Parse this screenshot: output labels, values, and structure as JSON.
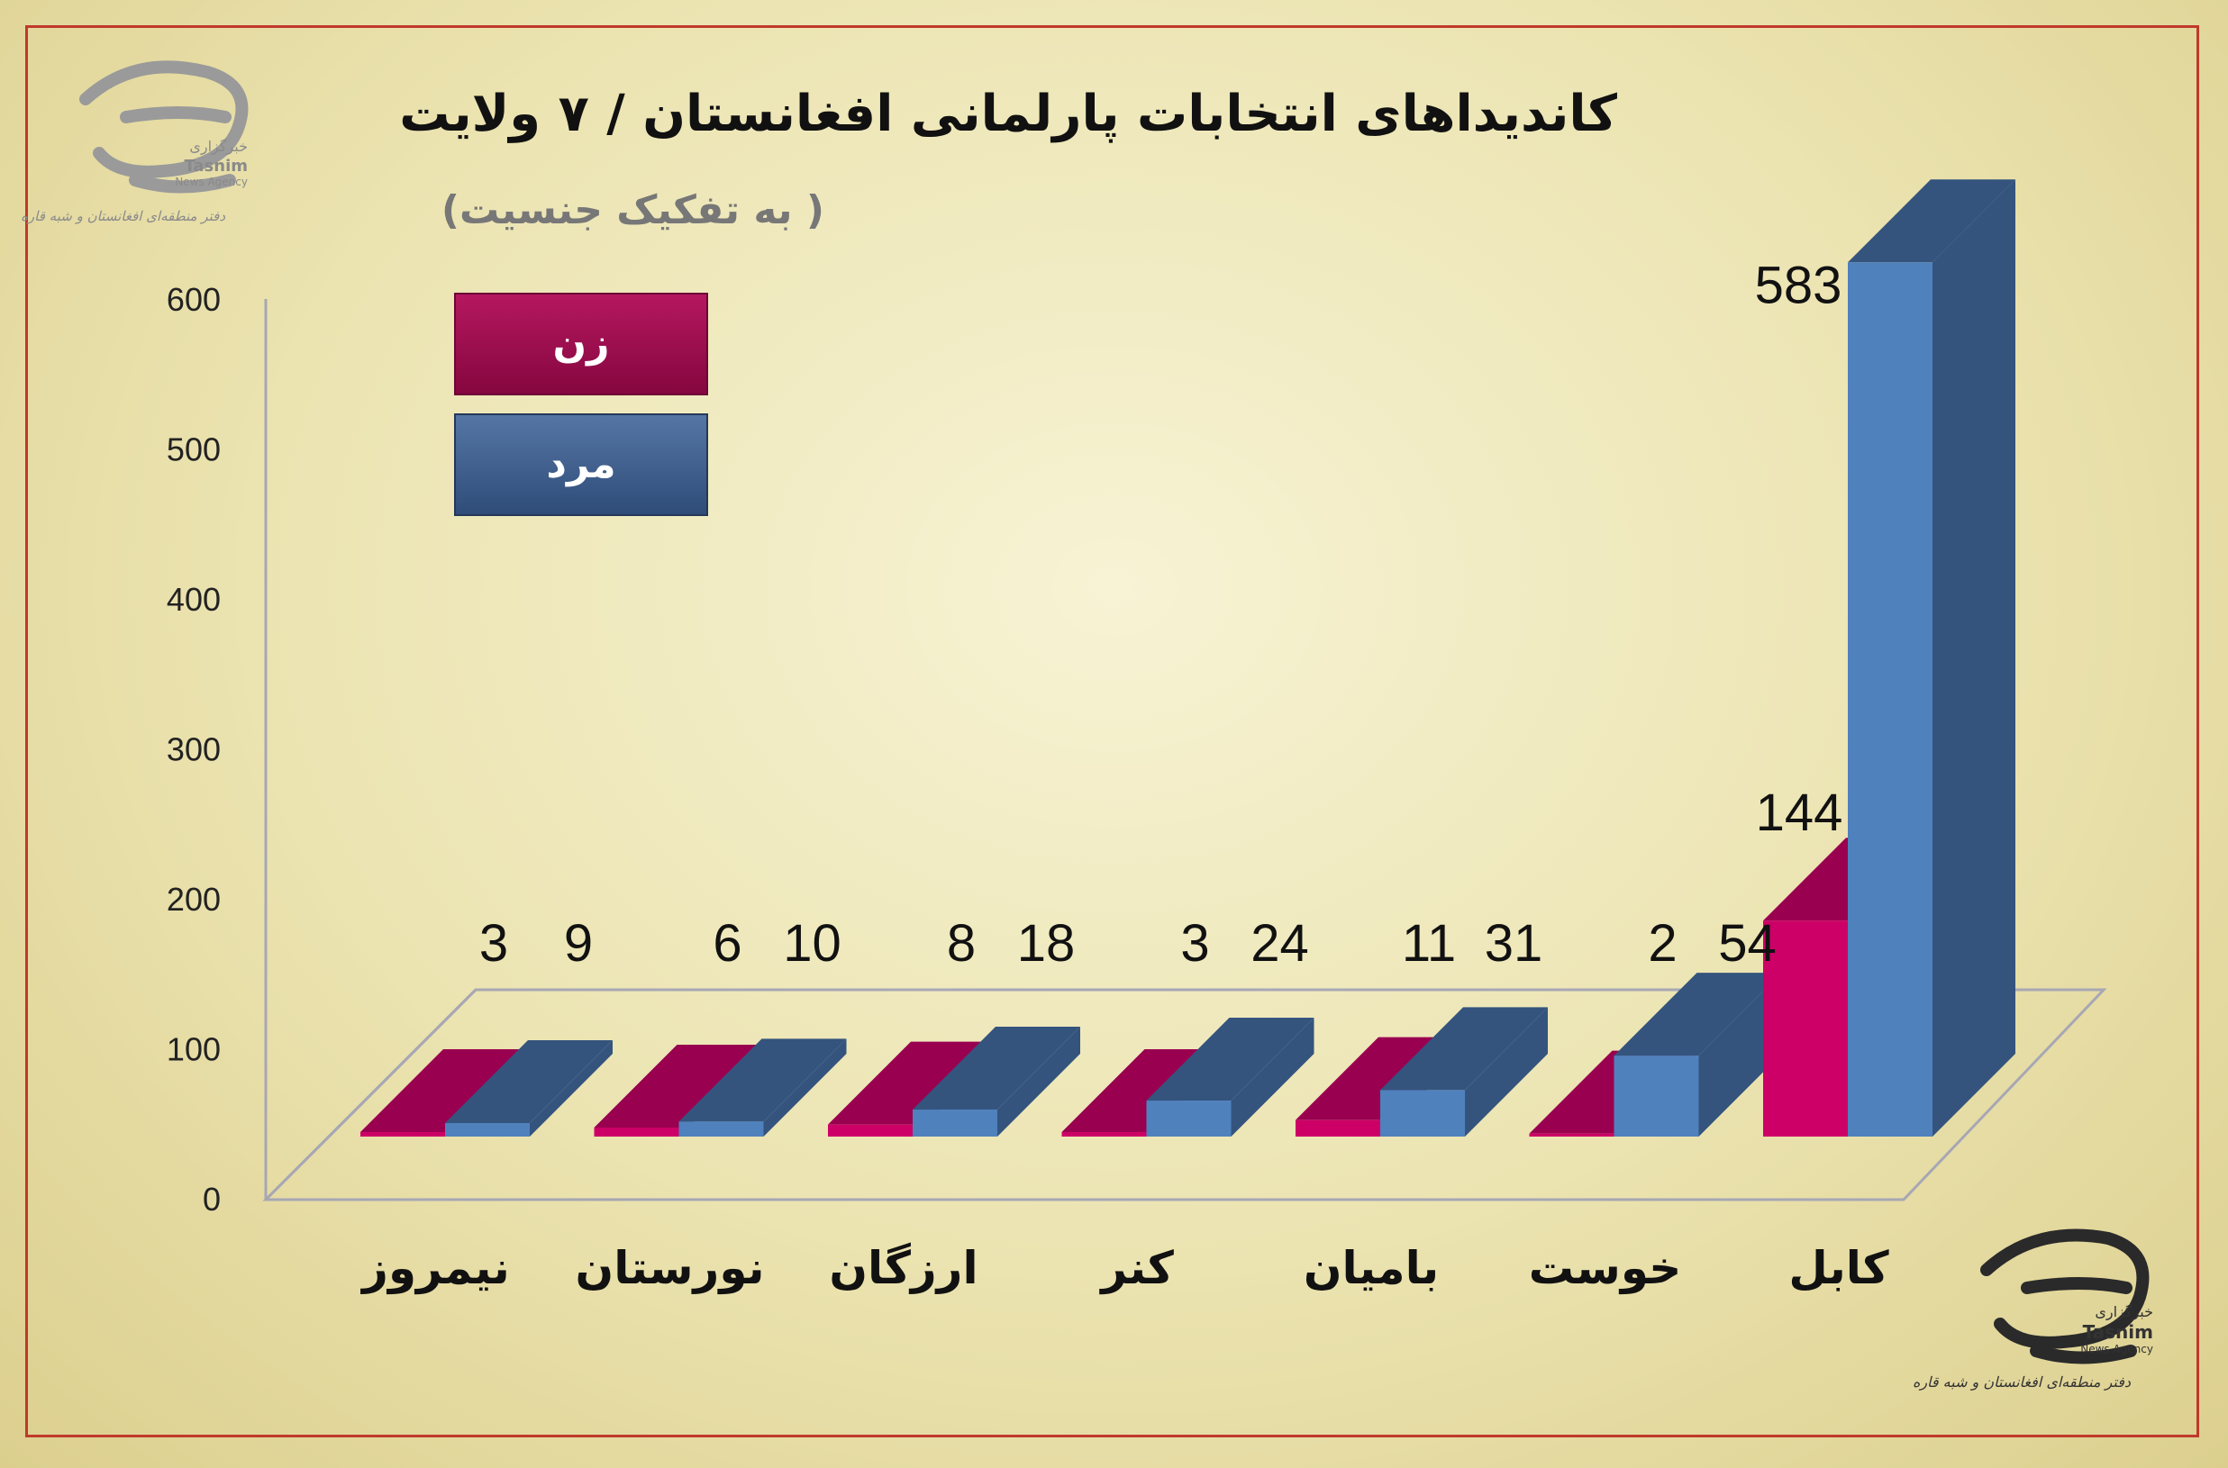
{
  "header": {
    "title": "کاندیداهای انتخابات پارلمانی افغانستان / ۷ ولایت",
    "subtitle": "( به تفکیک جنسیت)"
  },
  "logo": {
    "brand_fa": "خبرگزاری",
    "brand_en": "Tasnim",
    "tagline_en": "News Agency",
    "office_fa": "دفتر منطقه‌ای افغانستان و شبه قاره"
  },
  "colors": {
    "female": "#cc0066",
    "female_dark": "#990050",
    "male": "#4f81bd",
    "male_dark": "#34547e",
    "legend_female": "#9e0a4e",
    "legend_male": "#3d5f8f"
  },
  "chart_data": {
    "type": "bar",
    "title": "کاندیداهای انتخابات پارلمانی افغانستان / ۷ ولایت",
    "subtitle": "( به تفکیک جنسیت)",
    "categories": [
      "نیمروز",
      "نورستان",
      "ارزگان",
      "کنر",
      "بامیان",
      "خوست",
      "کابل"
    ],
    "series": [
      {
        "name": "زن",
        "values": [
          3,
          6,
          8,
          3,
          11,
          2,
          144
        ]
      },
      {
        "name": "مرد",
        "values": [
          9,
          10,
          18,
          24,
          31,
          54,
          583
        ]
      }
    ],
    "yticks": [
      "0",
      "100",
      "200",
      "300",
      "400",
      "500",
      "600"
    ],
    "ylim": [
      0,
      600
    ],
    "legend": "top-left",
    "grid": false,
    "style": "3d-clustered"
  }
}
